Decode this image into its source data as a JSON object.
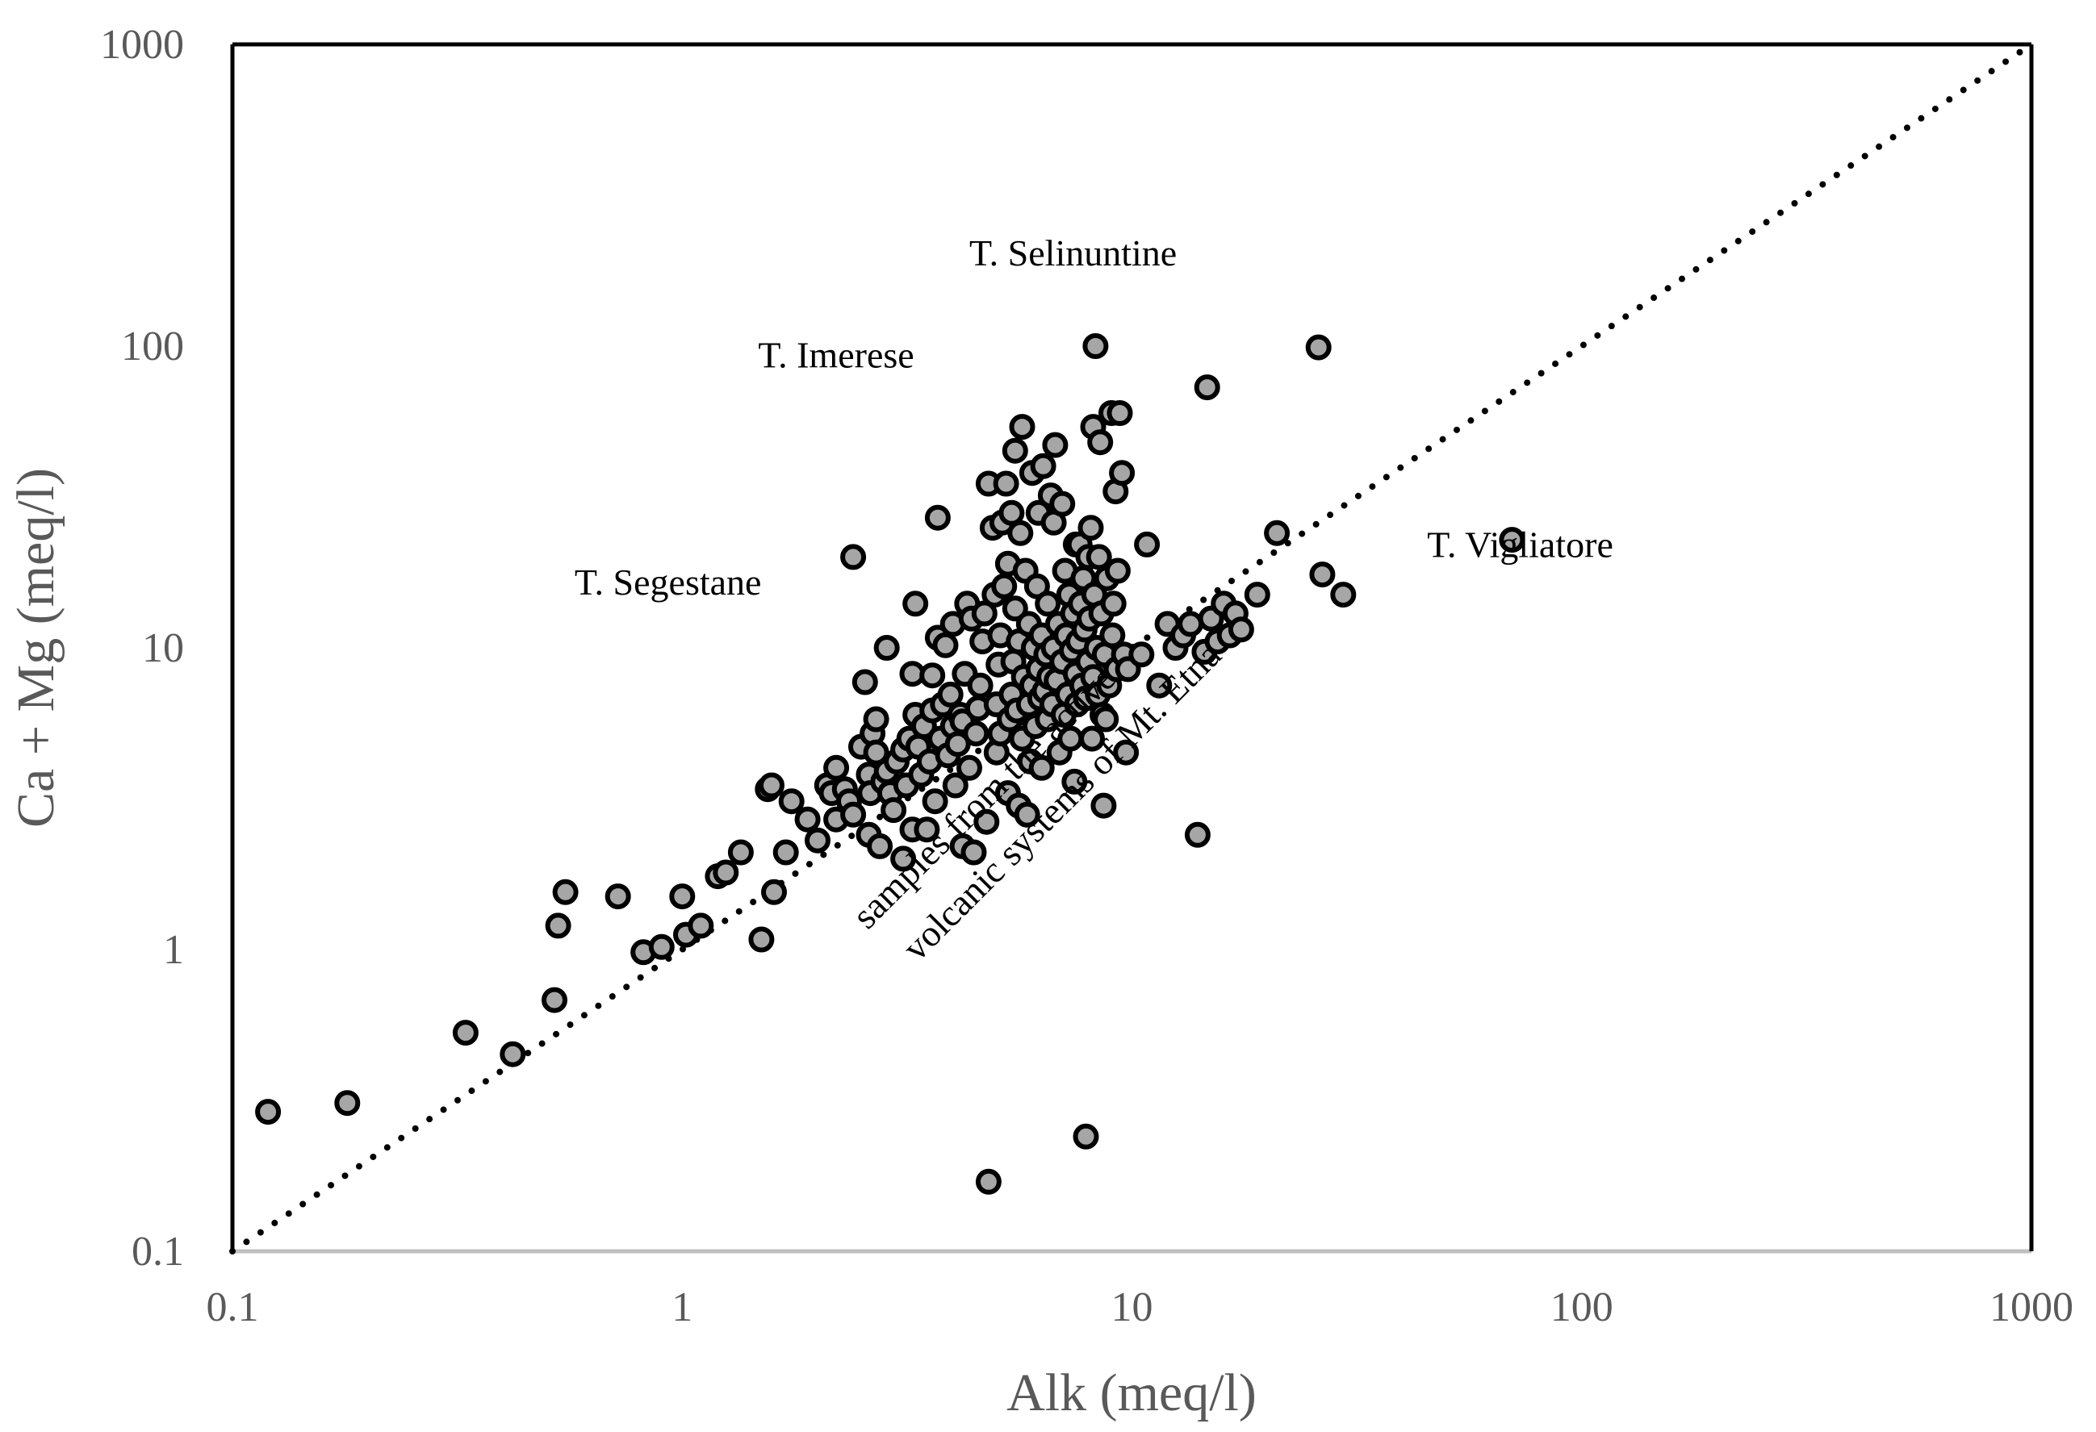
{
  "chart_data": {
    "type": "scatter",
    "title": "",
    "xlabel": "Alk (meq/l)",
    "ylabel": "Ca + Mg (meq/l)",
    "xscale": "log",
    "yscale": "log",
    "xlim": [
      0.1,
      1000
    ],
    "ylim": [
      0.1,
      1000
    ],
    "x_ticks": [
      "0.1",
      "1",
      "10",
      "100",
      "1000"
    ],
    "y_ticks": [
      "0.1",
      "1",
      "10",
      "100",
      "1000"
    ],
    "grid": false,
    "legend": "none",
    "reference_line": {
      "style": "dotted",
      "x": [
        0.1,
        1000
      ],
      "y": [
        0.1,
        1000
      ]
    },
    "colors": {
      "marker_fill": "#a6a6a6",
      "marker_edge": "#000000",
      "axis_text": "#595959",
      "frame_dark": "#000000",
      "frame_light": "#bfbfbf"
    },
    "annotations": [
      {
        "text": "T. Selinuntine",
        "x": 7.4,
        "y": 185
      },
      {
        "text": "T. Imerese",
        "x": 2.2,
        "y": 85
      },
      {
        "text": "T. Segestane",
        "x": 0.93,
        "y": 15
      },
      {
        "text": "T. Vigliatore",
        "x": 73,
        "y": 20
      },
      {
        "text": "samples from the active",
        "x": 4.9,
        "y": 3.0,
        "angle": -45
      },
      {
        "text": "volcanic systems of Mt. Etna",
        "x": 7.3,
        "y": 2.9,
        "angle": -45
      }
    ],
    "series": [
      {
        "points": [
          [
            0.12,
            0.29
          ],
          [
            0.18,
            0.31
          ],
          [
            0.33,
            0.53
          ],
          [
            0.42,
            0.45
          ],
          [
            0.52,
            0.68
          ],
          [
            0.53,
            1.2
          ],
          [
            0.55,
            1.55
          ],
          [
            0.72,
            1.5
          ],
          [
            0.82,
            0.98
          ],
          [
            0.9,
            1.02
          ],
          [
            1.0,
            1.5
          ],
          [
            1.02,
            1.12
          ],
          [
            1.1,
            1.2
          ],
          [
            1.2,
            1.75
          ],
          [
            1.25,
            1.8
          ],
          [
            1.35,
            2.1
          ],
          [
            1.5,
            1.08
          ],
          [
            1.55,
            3.4
          ],
          [
            1.58,
            3.5
          ],
          [
            1.6,
            1.55
          ],
          [
            1.7,
            2.1
          ],
          [
            1.75,
            3.1
          ],
          [
            1.9,
            2.7
          ],
          [
            2.0,
            2.3
          ],
          [
            2.1,
            3.5
          ],
          [
            2.15,
            3.3
          ],
          [
            2.2,
            4.0
          ],
          [
            2.2,
            2.7
          ],
          [
            2.3,
            3.4
          ],
          [
            2.35,
            3.1
          ],
          [
            2.4,
            2.8
          ],
          [
            2.4,
            20.0
          ],
          [
            2.5,
            4.7
          ],
          [
            2.55,
            7.7
          ],
          [
            2.6,
            3.8
          ],
          [
            2.6,
            2.4
          ],
          [
            2.62,
            3.3
          ],
          [
            2.65,
            5.2
          ],
          [
            2.7,
            5.8
          ],
          [
            2.7,
            4.5
          ],
          [
            2.75,
            2.2
          ],
          [
            2.8,
            3.6
          ],
          [
            2.85,
            3.9
          ],
          [
            2.85,
            10.0
          ],
          [
            2.9,
            3.3
          ],
          [
            2.95,
            2.9
          ],
          [
            3.0,
            4.2
          ],
          [
            3.1,
            4.6
          ],
          [
            3.1,
            2.0
          ],
          [
            3.15,
            3.5
          ],
          [
            3.2,
            5.0
          ],
          [
            3.25,
            8.2
          ],
          [
            3.25,
            2.5
          ],
          [
            3.3,
            6.0
          ],
          [
            3.3,
            14.0
          ],
          [
            3.35,
            4.7
          ],
          [
            3.4,
            3.8
          ],
          [
            3.45,
            5.5
          ],
          [
            3.5,
            2.5
          ],
          [
            3.55,
            4.2
          ],
          [
            3.6,
            6.2
          ],
          [
            3.6,
            8.1
          ],
          [
            3.65,
            3.1
          ],
          [
            3.7,
            10.8
          ],
          [
            3.7,
            27.0
          ],
          [
            3.75,
            5.0
          ],
          [
            3.8,
            6.5
          ],
          [
            3.85,
            10.2
          ],
          [
            3.9,
            4.4
          ],
          [
            3.95,
            7.0
          ],
          [
            4.0,
            5.5
          ],
          [
            4.0,
            12.0
          ],
          [
            4.05,
            3.5
          ],
          [
            4.1,
            4.8
          ],
          [
            4.15,
            6.0
          ],
          [
            4.2,
            5.7
          ],
          [
            4.2,
            2.2
          ],
          [
            4.25,
            8.2
          ],
          [
            4.3,
            14.0
          ],
          [
            4.35,
            4.0
          ],
          [
            4.4,
            12.5
          ],
          [
            4.45,
            2.1
          ],
          [
            4.5,
            5.2
          ],
          [
            4.55,
            6.3
          ],
          [
            4.6,
            7.5
          ],
          [
            4.65,
            10.5
          ],
          [
            4.7,
            13.0
          ],
          [
            4.75,
            2.65
          ],
          [
            4.8,
            35.0
          ],
          [
            4.8,
            0.17
          ],
          [
            4.9,
            25.0
          ],
          [
            4.95,
            15.0
          ],
          [
            5.0,
            4.5
          ],
          [
            5.0,
            6.5
          ],
          [
            5.05,
            8.8
          ],
          [
            5.1,
            11.0
          ],
          [
            5.1,
            5.2
          ],
          [
            5.15,
            26.0
          ],
          [
            5.2,
            16.0
          ],
          [
            5.25,
            35.0
          ],
          [
            5.3,
            3.3
          ],
          [
            5.3,
            19.0
          ],
          [
            5.35,
            5.8
          ],
          [
            5.4,
            7.0
          ],
          [
            5.4,
            28.0
          ],
          [
            5.45,
            9.0
          ],
          [
            5.5,
            13.5
          ],
          [
            5.5,
            45.0
          ],
          [
            5.55,
            6.2
          ],
          [
            5.6,
            3.0
          ],
          [
            5.6,
            10.5
          ],
          [
            5.65,
            24.0
          ],
          [
            5.7,
            5.0
          ],
          [
            5.7,
            54.0
          ],
          [
            5.75,
            8.0
          ],
          [
            5.8,
            18.0
          ],
          [
            5.85,
            2.8
          ],
          [
            5.9,
            6.5
          ],
          [
            5.9,
            12.0
          ],
          [
            5.95,
            4.2
          ],
          [
            6.0,
            7.5
          ],
          [
            6.0,
            38.0
          ],
          [
            6.05,
            10.0
          ],
          [
            6.1,
            5.5
          ],
          [
            6.15,
            16.0
          ],
          [
            6.2,
            8.5
          ],
          [
            6.2,
            28.0
          ],
          [
            6.25,
            6.8
          ],
          [
            6.3,
            11.0
          ],
          [
            6.3,
            4.0
          ],
          [
            6.35,
            40.0
          ],
          [
            6.4,
            7.2
          ],
          [
            6.45,
            9.5
          ],
          [
            6.5,
            14.0
          ],
          [
            6.5,
            5.8
          ],
          [
            6.55,
            8.0
          ],
          [
            6.6,
            32.0
          ],
          [
            6.65,
            6.5
          ],
          [
            6.7,
            10.0
          ],
          [
            6.7,
            26.0
          ],
          [
            6.75,
            47.0
          ],
          [
            6.8,
            7.8
          ],
          [
            6.85,
            12.0
          ],
          [
            6.9,
            4.5
          ],
          [
            7.0,
            9.0
          ],
          [
            7.0,
            30.0
          ],
          [
            7.05,
            6.0
          ],
          [
            7.1,
            18.0
          ],
          [
            7.15,
            11.0
          ],
          [
            7.2,
            7.0
          ],
          [
            7.25,
            15.0
          ],
          [
            7.3,
            5.0
          ],
          [
            7.35,
            9.8
          ],
          [
            7.4,
            13.0
          ],
          [
            7.45,
            3.6
          ],
          [
            7.5,
            8.2
          ],
          [
            7.5,
            22.0
          ],
          [
            7.55,
            6.5
          ],
          [
            7.6,
            10.5
          ],
          [
            7.65,
            22.0
          ],
          [
            7.7,
            14.0
          ],
          [
            7.75,
            7.5
          ],
          [
            7.8,
            17.0
          ],
          [
            7.85,
            11.5
          ],
          [
            7.9,
            6.8
          ],
          [
            7.9,
            0.24
          ],
          [
            8.0,
            9.0
          ],
          [
            8.0,
            20.0
          ],
          [
            8.05,
            12.5
          ],
          [
            8.1,
            25.0
          ],
          [
            8.15,
            5.0
          ],
          [
            8.2,
            8.0
          ],
          [
            8.2,
            54.0
          ],
          [
            8.25,
            15.0
          ],
          [
            8.3,
            100.0
          ],
          [
            8.35,
            10.0
          ],
          [
            8.4,
            7.0
          ],
          [
            8.45,
            20.0
          ],
          [
            8.5,
            48.0
          ],
          [
            8.55,
            13.0
          ],
          [
            8.6,
            6.0
          ],
          [
            8.65,
            3.0
          ],
          [
            8.7,
            9.5
          ],
          [
            8.75,
            5.8
          ],
          [
            8.8,
            17.0
          ],
          [
            8.9,
            7.5
          ],
          [
            9.0,
            60.0
          ],
          [
            9.05,
            11.0
          ],
          [
            9.1,
            14.0
          ],
          [
            9.2,
            33.0
          ],
          [
            9.25,
            8.5
          ],
          [
            9.3,
            18.0
          ],
          [
            9.4,
            60.0
          ],
          [
            9.5,
            38.0
          ],
          [
            9.6,
            9.5
          ],
          [
            9.7,
            4.5
          ],
          [
            9.8,
            8.5
          ],
          [
            10.5,
            9.5
          ],
          [
            10.8,
            22.0
          ],
          [
            11.5,
            7.5
          ],
          [
            12.0,
            12.0
          ],
          [
            12.5,
            10.0
          ],
          [
            13.0,
            11.0
          ],
          [
            13.5,
            12.0
          ],
          [
            14.0,
            2.4
          ],
          [
            14.5,
            9.7
          ],
          [
            14.7,
            73.0
          ],
          [
            15.0,
            12.5
          ],
          [
            15.5,
            10.5
          ],
          [
            16.0,
            14.0
          ],
          [
            16.5,
            11.0
          ],
          [
            17.0,
            13.0
          ],
          [
            17.5,
            11.5
          ],
          [
            19.0,
            15.0
          ],
          [
            21.0,
            24.0
          ],
          [
            26.0,
            99.0
          ],
          [
            26.5,
            17.5
          ],
          [
            29.5,
            15.0
          ],
          [
            70.0,
            22.8
          ]
        ]
      }
    ]
  }
}
